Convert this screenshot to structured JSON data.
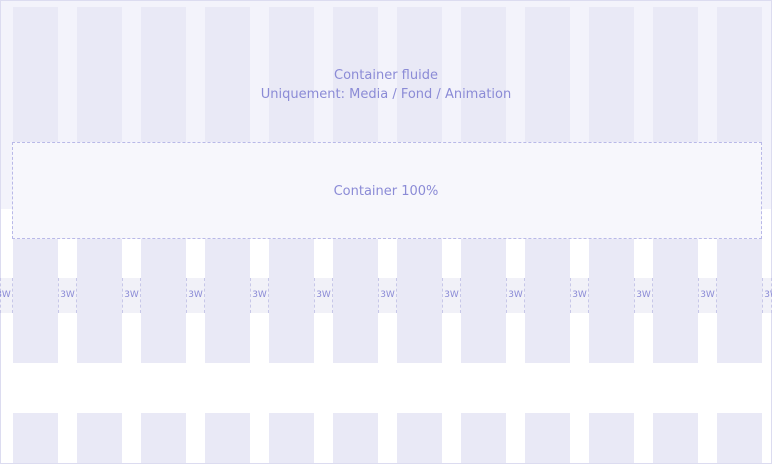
{
  "fluid": {
    "title": "Container fluide",
    "subtitle": "Uniquement: Media / Fond / Animation"
  },
  "container100": {
    "label": "Container 100%"
  },
  "gutter_label": "3W",
  "colors": {
    "column": "#e9e9f6",
    "fluid_background": "#f3f3fb",
    "label": "#8b8bd6",
    "border": "#b9b9e8"
  }
}
